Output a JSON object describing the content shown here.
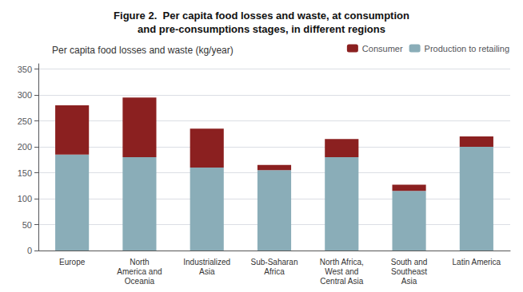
{
  "chart_data": {
    "type": "bar",
    "title": "Figure 2.  Per capita food losses and waste, at consumption\nand pre-consumptions stages, in different regions",
    "subtitle": "Per capita food losses and waste (kg/year)",
    "categories": [
      "Europe",
      "North\nAmerica and\nOceania",
      "Industrialized\nAsia",
      "Sub-Saharan\nAfrica",
      "North Africa,\nWest and\nCentral Asia",
      "South and\nSoutheast\nAsia",
      "Latin America"
    ],
    "series": [
      {
        "name": "Production to retailing",
        "color": "#8AADB8",
        "values": [
          185,
          180,
          160,
          155,
          180,
          115,
          200
        ]
      },
      {
        "name": "Consumer",
        "color": "#8B2020",
        "values": [
          95,
          115,
          75,
          10,
          35,
          12,
          20
        ]
      }
    ],
    "stacked": true,
    "ylim": [
      0,
      360
    ],
    "yticks": [
      0,
      50,
      100,
      150,
      200,
      250,
      300,
      350
    ],
    "grid": true,
    "legend": "upper right"
  }
}
